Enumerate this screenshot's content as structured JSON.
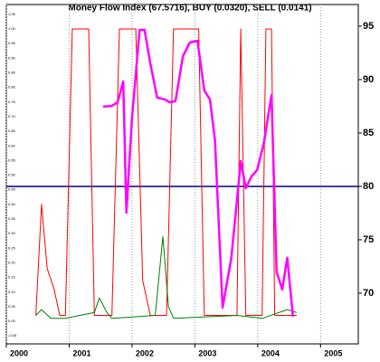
{
  "chart_data": {
    "type": "line",
    "title": "Money Flow Index (67.5716), BUY (0.0320), SELL (0.0141)",
    "xlim": [
      2000,
      2005.6
    ],
    "xticks": [
      2000,
      2001,
      2002,
      2003,
      2004,
      2005
    ],
    "ylim": [
      -0.0774,
      1.0836
    ],
    "yticks": [
      {
        "value": -0.05,
        "label": "-0.05"
      },
      {
        "value": 0,
        "label": "0.00"
      },
      {
        "value": 0.05,
        "label": "0.05"
      },
      {
        "value": 0.1,
        "label": "0.10"
      },
      {
        "value": 0.15,
        "label": "0.15"
      },
      {
        "value": 0.2,
        "label": "0.20"
      },
      {
        "value": 0.25,
        "label": "0.25"
      },
      {
        "value": 0.3,
        "label": "0.30"
      },
      {
        "value": 0.35,
        "label": "0.35"
      },
      {
        "value": 0.4,
        "label": "0.40"
      },
      {
        "value": 0.45,
        "label": "0.45"
      },
      {
        "value": 0.5,
        "label": "0.50"
      },
      {
        "value": 0.55,
        "label": "0.55"
      },
      {
        "value": 0.6,
        "label": "0.60"
      },
      {
        "value": 0.65,
        "label": "0.65"
      },
      {
        "value": 0.7,
        "label": "0.70"
      },
      {
        "value": 0.75,
        "label": "0.75"
      },
      {
        "value": 0.8,
        "label": "0.80"
      },
      {
        "value": 0.85,
        "label": "0.85"
      },
      {
        "value": 0.9,
        "label": "0.90"
      },
      {
        "value": 0.95,
        "label": "0.95"
      },
      {
        "value": 1,
        "label": "1.00"
      },
      {
        "value": 1.05,
        "label": "1.05"
      }
    ],
    "y2lim": [
      65.25,
      97.03
    ],
    "y2ticks": [
      70,
      75,
      80,
      85,
      90,
      95
    ],
    "grid": true,
    "reference_line": {
      "value": 80,
      "axis": "y2",
      "color": "#00008b"
    },
    "series": [
      {
        "color": "#ff0000",
        "x": [
          2000.47,
          2000.56,
          2000.65,
          2000.76,
          2000.85,
          2000.94,
          2001.05,
          2001.31,
          2001.4,
          2001.6,
          2001.68,
          2001.8,
          2002.06,
          2002.17,
          2002.29,
          2002.43,
          2002.55,
          2002.66,
          2003.06,
          2003.15,
          2003.67,
          2003.73,
          2003.81,
          2004.07,
          2004.13,
          2004.22,
          2004.27,
          2004.47,
          2004.62
        ],
        "values": [
          0.02,
          0.4,
          0.18,
          0.11,
          0.02,
          0.02,
          1.0,
          1.0,
          0.02,
          0.02,
          0.02,
          1.0,
          1.0,
          0.14,
          0.02,
          0.02,
          0.02,
          1.0,
          1.0,
          0.02,
          0.02,
          1.0,
          0.02,
          0.02,
          1.0,
          1.0,
          0.02,
          0.02,
          0.02
        ]
      },
      {
        "color": "#008000",
        "x": [
          2000.47,
          2000.56,
          2000.71,
          2000.94,
          2001.4,
          2001.48,
          2001.6,
          2001.68,
          2002.37,
          2002.49,
          2002.58,
          2002.66,
          2003.67,
          2004.07,
          2004.47,
          2004.62
        ],
        "values": [
          0.02,
          0.04,
          0.01,
          0.01,
          0.03,
          0.08,
          0.03,
          0.01,
          0.02,
          0.29,
          0.05,
          0.01,
          0.02,
          0.01,
          0.04,
          0.03
        ]
      },
      {
        "color": "#ff00ff",
        "axis": "y2",
        "x": [
          2001.54,
          2001.68,
          2001.77,
          2001.86,
          2001.91,
          2002.0,
          2002.12,
          2002.2,
          2002.29,
          2002.4,
          2002.52,
          2002.6,
          2002.69,
          2002.81,
          2002.92,
          2003.04,
          2003.15,
          2003.24,
          2003.32,
          2003.44,
          2003.58,
          2003.73,
          2003.81,
          2003.9,
          2003.99,
          2004.1,
          2004.22,
          2004.3,
          2004.39,
          2004.47,
          2004.56
        ],
        "values": [
          87.46,
          87.54,
          87.88,
          89.83,
          77.54,
          86.44,
          94.66,
          94.66,
          91.53,
          88.31,
          88.14,
          87.88,
          87.97,
          92.2,
          93.47,
          93.64,
          88.98,
          88.14,
          84.32,
          68.64,
          73.31,
          82.37,
          79.83,
          80.93,
          81.53,
          84.15,
          88.56,
          72.03,
          70.34,
          73.31,
          67.8
        ]
      }
    ]
  }
}
